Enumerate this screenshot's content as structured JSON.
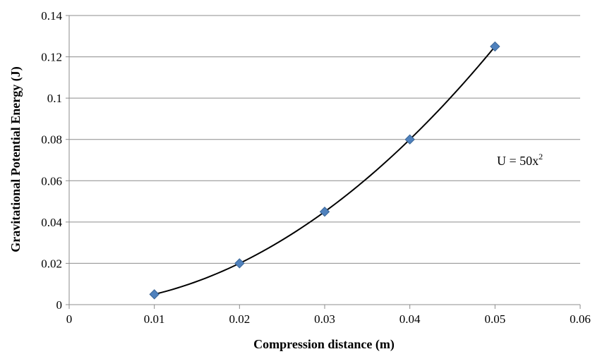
{
  "chart_data": {
    "type": "scatter",
    "xlabel": "Compression distance (m)",
    "ylabel": "Gravitational Potential Energy (J)",
    "xlim": [
      0,
      0.06
    ],
    "ylim": [
      0,
      0.14
    ],
    "x_ticks": [
      "0",
      "0.01",
      "0.02",
      "0.03",
      "0.04",
      "0.05",
      "0.06"
    ],
    "y_ticks": [
      "0",
      "0.02",
      "0.04",
      "0.06",
      "0.08",
      "0.1",
      "0.12",
      "0.14"
    ],
    "grid": "horizontal",
    "series": [
      {
        "x": [
          0.01,
          0.02,
          0.03,
          0.04,
          0.05
        ],
        "values": [
          0.005,
          0.02,
          0.045,
          0.08,
          0.125
        ],
        "marker": "diamond",
        "color": "#4f81bd",
        "trendline": "quadratic"
      }
    ],
    "annotation": {
      "text": "U = 50x",
      "superscript": "2"
    }
  }
}
